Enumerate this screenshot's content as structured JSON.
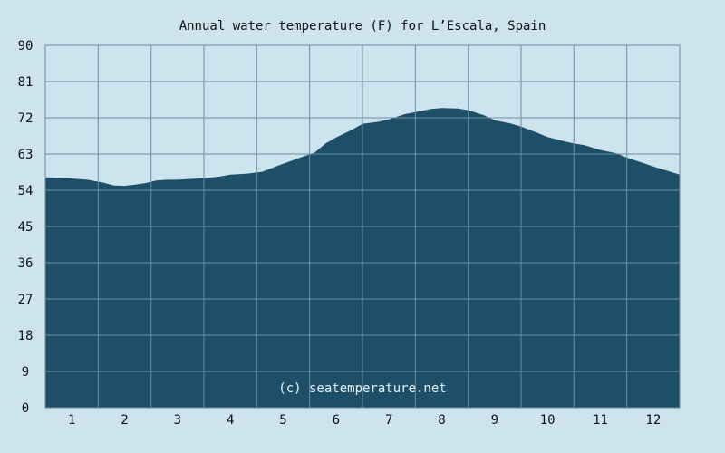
{
  "chart_data": {
    "type": "area",
    "title": "Annual water temperature (F) for L’Escala, Spain",
    "xlabel": "",
    "ylabel": "",
    "x_unit": "month",
    "xlim": [
      0.5,
      12.5
    ],
    "ylim": [
      0,
      90
    ],
    "y_ticks": [
      0,
      9,
      18,
      27,
      36,
      45,
      54,
      63,
      72,
      81,
      90
    ],
    "x_ticks": [
      1,
      2,
      3,
      4,
      5,
      6,
      7,
      8,
      9,
      10,
      11,
      12
    ],
    "grid": true,
    "x": [
      0.5,
      0.8,
      1.0,
      1.3,
      1.6,
      1.8,
      2.0,
      2.2,
      2.4,
      2.6,
      2.8,
      3.0,
      3.2,
      3.5,
      3.8,
      4.0,
      4.3,
      4.6,
      4.8,
      5.0,
      5.3,
      5.6,
      5.8,
      6.0,
      6.3,
      6.5,
      6.8,
      7.0,
      7.3,
      7.5,
      7.8,
      8.0,
      8.3,
      8.5,
      8.8,
      9.0,
      9.3,
      9.5,
      9.8,
      10.0,
      10.3,
      10.5,
      10.7,
      11.0,
      11.3,
      11.5,
      11.8,
      12.0,
      12.3,
      12.5
    ],
    "values": [
      57.2,
      57.1,
      56.9,
      56.6,
      55.9,
      55.2,
      55.1,
      55.4,
      55.8,
      56.4,
      56.6,
      56.6,
      56.8,
      57.0,
      57.4,
      57.9,
      58.1,
      58.6,
      59.6,
      60.6,
      62.0,
      63.4,
      65.6,
      67.1,
      69.0,
      70.5,
      71.0,
      71.6,
      72.9,
      73.4,
      74.2,
      74.4,
      74.3,
      73.9,
      72.6,
      71.4,
      70.6,
      69.8,
      68.3,
      67.2,
      66.2,
      65.6,
      65.2,
      64.0,
      63.2,
      62.1,
      60.8,
      59.9,
      58.7,
      57.9
    ],
    "series": [
      {
        "name": "",
        "color": "#1e4f68"
      }
    ],
    "annotation": "(c) seatemperature.net"
  },
  "colors": {
    "background": "#cde3ee",
    "area": "#1e4f68",
    "plot_bg": "#cde3ee",
    "grid": "#6e8ea3"
  }
}
